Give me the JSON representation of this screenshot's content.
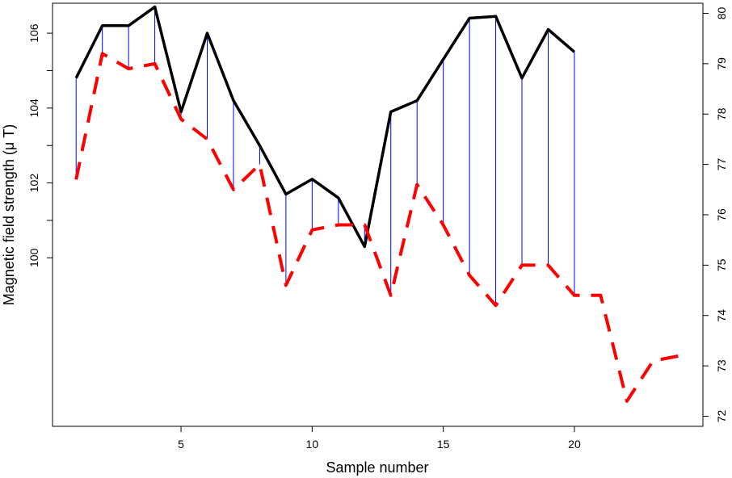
{
  "chart_data": {
    "type": "line",
    "title": "",
    "xlabel": "Sample number",
    "ylabel": "Magnetic field strength (μ T)",
    "xlim": [
      0.1,
      24.9
    ],
    "x_ticks": [
      5,
      10,
      15,
      20
    ],
    "y_left_ticks": [
      100,
      102,
      104,
      106
    ],
    "y_left_range": [
      95.5,
      106.8
    ],
    "y_right_ticks": [
      72,
      73,
      74,
      75,
      76,
      77,
      78,
      79,
      80
    ],
    "y_right_range": [
      71.8,
      80.2
    ],
    "grid": false,
    "legend": "none",
    "series": [
      {
        "axis": "left",
        "style": "solid",
        "color": "#000000",
        "x": [
          1,
          2,
          3,
          4,
          5,
          6,
          7,
          8,
          9,
          10,
          11,
          12,
          13,
          14,
          15,
          16,
          17,
          18,
          19,
          20
        ],
        "values": [
          104.8,
          106.2,
          106.2,
          106.7,
          103.9,
          106.0,
          104.2,
          103.0,
          101.7,
          102.1,
          101.6,
          100.3,
          103.9,
          104.2,
          105.3,
          106.4,
          106.45,
          104.8,
          106.1,
          105.5
        ]
      },
      {
        "axis": "right",
        "style": "dashed",
        "color": "#ff0000",
        "x": [
          1,
          2,
          3,
          4,
          5,
          6,
          7,
          8,
          9,
          10,
          11,
          12,
          13,
          14,
          15,
          16,
          17,
          18,
          19,
          20,
          21,
          22,
          23,
          24
        ],
        "values": [
          76.7,
          79.2,
          78.9,
          79.0,
          77.9,
          77.5,
          76.5,
          77.0,
          74.6,
          75.7,
          75.8,
          75.8,
          74.4,
          76.6,
          75.8,
          74.8,
          74.2,
          75.0,
          75.0,
          74.4,
          74.4,
          72.3,
          73.1,
          73.2
        ]
      }
    ],
    "connector_color": "#0000ff"
  }
}
